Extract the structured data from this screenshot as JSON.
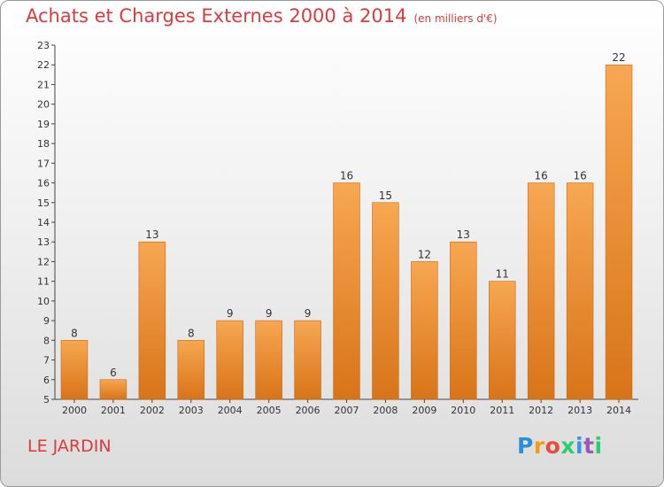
{
  "title": "Achats et Charges Externes 2000 à 2014",
  "unit": "(en milliers d'€)",
  "commune": "LE JARDIN",
  "brand": {
    "letters": [
      "P",
      "r",
      "o",
      "x",
      "i",
      "t",
      "i"
    ]
  },
  "colors": {
    "accent": "#dc3a3f",
    "bar_light": "#f7a752",
    "bar_dark": "#d87418",
    "brand_letters": [
      "#2b8fd6",
      "#f39c12",
      "#e74c3c",
      "#2ecc71",
      "#3498db",
      "#9b59b6",
      "#2ecc71"
    ]
  },
  "chart_data": {
    "type": "bar",
    "categories": [
      "2000",
      "2001",
      "2002",
      "2003",
      "2004",
      "2005",
      "2006",
      "2007",
      "2008",
      "2009",
      "2010",
      "2011",
      "2012",
      "2013",
      "2014"
    ],
    "values": [
      8,
      6,
      13,
      8,
      9,
      9,
      9,
      16,
      15,
      12,
      13,
      11,
      16,
      16,
      22
    ],
    "ylim": [
      5,
      23
    ],
    "yticks": [
      5,
      6,
      7,
      8,
      9,
      10,
      11,
      12,
      13,
      14,
      15,
      16,
      17,
      18,
      19,
      20,
      21,
      22,
      23
    ],
    "grid": false,
    "data_labels": true
  }
}
